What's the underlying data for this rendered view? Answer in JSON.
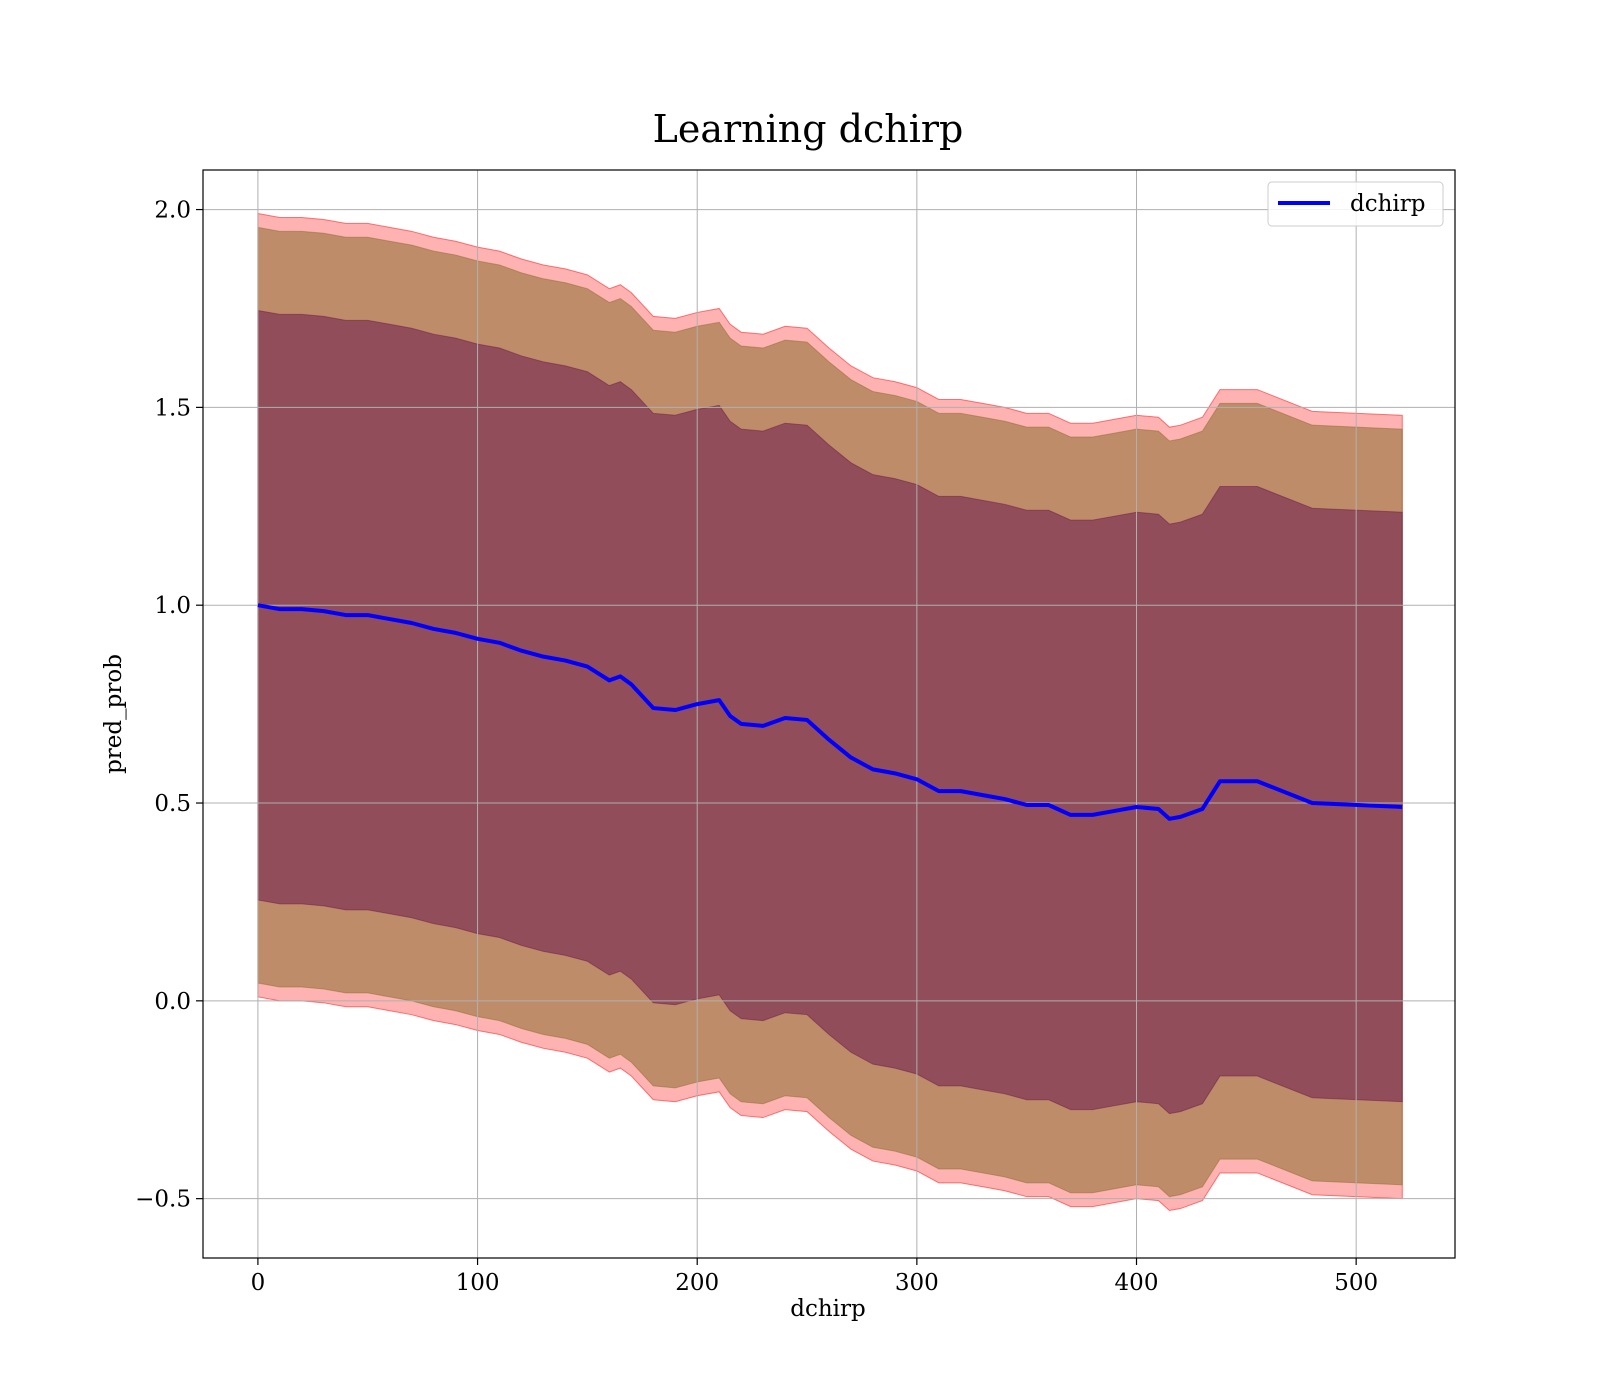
{
  "chart_data": {
    "type": "line",
    "title": "Learning dchirp",
    "xlabel": "dchirp",
    "ylabel": "pred_prob",
    "xlim": [
      -25,
      545
    ],
    "ylim": [
      -0.65,
      2.1
    ],
    "xticks": [
      0,
      100,
      200,
      300,
      400,
      500
    ],
    "yticks": [
      -0.5,
      0.0,
      0.5,
      1.0,
      1.5,
      2.0
    ],
    "ytick_labels": [
      "−0.5",
      "0.0",
      "0.5",
      "1.0",
      "1.5",
      "2.0"
    ],
    "grid": true,
    "legend": {
      "position": "top-right",
      "entries": [
        "dchirp"
      ]
    },
    "colors": {
      "line": "#0000ff",
      "band_outer": "#ff0000",
      "band_middle": "#8b6d2f",
      "band_inner": "#6b1a4a"
    },
    "series": [
      {
        "name": "dchirp",
        "x": [
          0,
          10,
          20,
          30,
          40,
          50,
          60,
          70,
          80,
          90,
          100,
          110,
          120,
          130,
          140,
          150,
          160,
          165,
          170,
          180,
          190,
          200,
          210,
          215,
          220,
          230,
          240,
          250,
          260,
          270,
          280,
          290,
          300,
          310,
          320,
          330,
          340,
          350,
          360,
          370,
          380,
          390,
          400,
          410,
          415,
          420,
          430,
          438,
          455,
          480,
          521
        ],
        "y": [
          1.0,
          0.99,
          0.99,
          0.985,
          0.975,
          0.975,
          0.965,
          0.955,
          0.94,
          0.93,
          0.915,
          0.905,
          0.885,
          0.87,
          0.86,
          0.845,
          0.81,
          0.82,
          0.8,
          0.74,
          0.735,
          0.75,
          0.76,
          0.72,
          0.7,
          0.695,
          0.715,
          0.71,
          0.66,
          0.615,
          0.585,
          0.575,
          0.56,
          0.53,
          0.53,
          0.52,
          0.51,
          0.495,
          0.495,
          0.47,
          0.47,
          0.48,
          0.49,
          0.485,
          0.46,
          0.465,
          0.485,
          0.555,
          0.555,
          0.5,
          0.49
        ]
      }
    ],
    "bands": [
      {
        "level": "outer",
        "half_width": [
          0.99,
          0.99,
          0.99,
          0.99,
          0.99,
          0.99,
          0.99,
          0.99,
          0.99,
          0.99,
          0.99,
          0.99,
          0.99,
          0.99,
          0.99,
          0.99,
          0.99,
          0.99,
          0.99,
          0.99,
          0.99,
          0.99,
          0.99,
          0.99,
          0.99,
          0.99,
          0.99,
          0.99,
          0.99,
          0.99,
          0.99,
          0.99,
          0.99,
          0.99,
          0.99,
          0.99,
          0.99,
          0.99,
          0.99,
          0.99,
          0.99,
          0.99,
          0.99,
          0.99,
          0.99,
          0.99,
          0.99,
          0.99,
          0.99,
          0.99,
          0.99
        ]
      },
      {
        "level": "middle",
        "half_width": [
          0.955,
          0.955,
          0.955,
          0.955,
          0.955,
          0.955,
          0.955,
          0.955,
          0.955,
          0.955,
          0.955,
          0.955,
          0.955,
          0.955,
          0.955,
          0.955,
          0.955,
          0.955,
          0.955,
          0.955,
          0.955,
          0.955,
          0.955,
          0.955,
          0.955,
          0.955,
          0.955,
          0.955,
          0.955,
          0.955,
          0.955,
          0.955,
          0.955,
          0.955,
          0.955,
          0.955,
          0.955,
          0.955,
          0.955,
          0.955,
          0.955,
          0.955,
          0.955,
          0.955,
          0.955,
          0.955,
          0.955,
          0.955,
          0.955,
          0.955,
          0.955
        ]
      },
      {
        "level": "inner",
        "half_width": [
          0.745,
          0.745,
          0.745,
          0.745,
          0.745,
          0.745,
          0.745,
          0.745,
          0.745,
          0.745,
          0.745,
          0.745,
          0.745,
          0.745,
          0.745,
          0.745,
          0.745,
          0.745,
          0.745,
          0.745,
          0.745,
          0.745,
          0.745,
          0.745,
          0.745,
          0.745,
          0.745,
          0.745,
          0.745,
          0.745,
          0.745,
          0.745,
          0.745,
          0.745,
          0.745,
          0.745,
          0.745,
          0.745,
          0.745,
          0.745,
          0.745,
          0.745,
          0.745,
          0.745,
          0.745,
          0.745,
          0.745,
          0.745,
          0.745,
          0.745,
          0.745
        ]
      }
    ]
  }
}
